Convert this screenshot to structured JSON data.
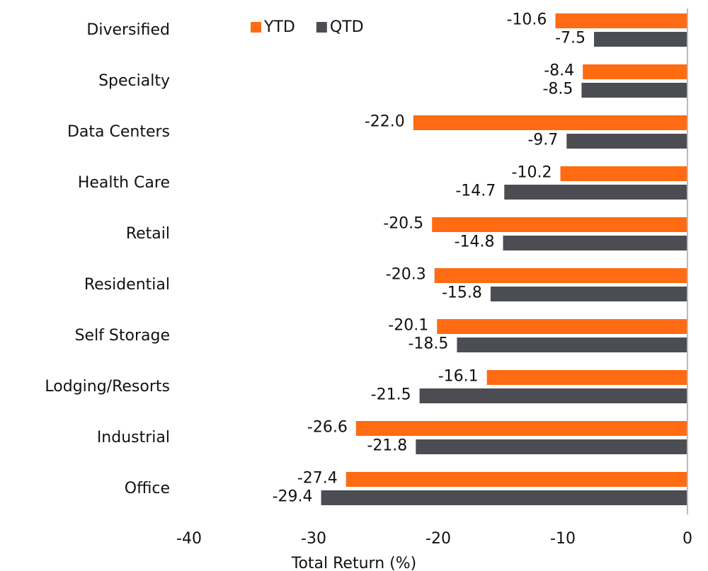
{
  "chart_data": {
    "type": "bar",
    "orientation": "horizontal",
    "xlabel": "Total Return (%)",
    "categories": [
      "Diversified",
      "Specialty",
      "Data Centers",
      "Health Care",
      "Retail",
      "Residential",
      "Self Storage",
      "Lodging/Resorts",
      "Industrial",
      "Office"
    ],
    "series": [
      {
        "name": "YTD",
        "color": "#ff6b12",
        "values": [
          -10.6,
          -8.4,
          -22.0,
          -10.2,
          -20.5,
          -20.3,
          -20.1,
          -16.1,
          -26.6,
          -27.4
        ],
        "value_labels": [
          "-10.6",
          "-8.4",
          "-22.0",
          "-10.2",
          "-20.5",
          "-20.3",
          "-20.1",
          "-16.1",
          "-26.6",
          "-27.4"
        ]
      },
      {
        "name": "QTD",
        "color": "#4b4d52",
        "values": [
          -7.5,
          -8.5,
          -9.7,
          -14.7,
          -14.8,
          -15.8,
          -18.5,
          -21.5,
          -21.8,
          -29.4
        ],
        "value_labels": [
          "-7.5",
          "-8.5",
          "-9.7",
          "-14.7",
          "-14.8",
          "-15.8",
          "-18.5",
          "-21.5",
          "-21.8",
          "-29.4"
        ]
      }
    ],
    "xlim": [
      -40,
      0
    ],
    "xticks": [
      -40,
      -30,
      -20,
      -10,
      0
    ],
    "grid": false
  }
}
